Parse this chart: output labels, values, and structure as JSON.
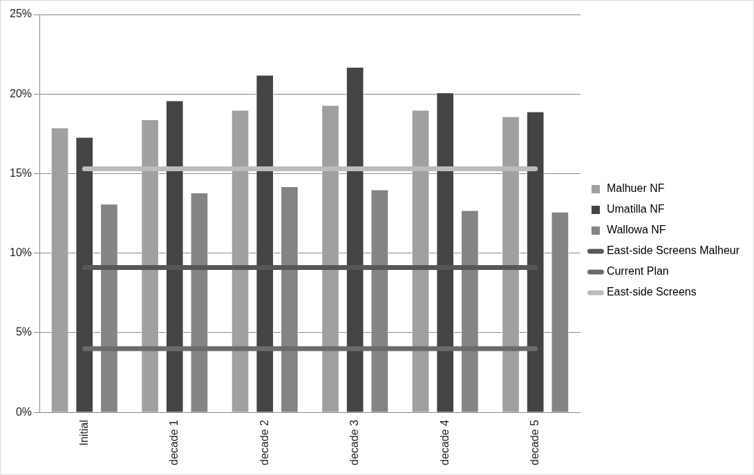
{
  "chart_data": {
    "type": "bar",
    "categories": [
      "Initial",
      "decade 1",
      "decade 2",
      "decade 3",
      "decade 4",
      "decade 5"
    ],
    "series": [
      {
        "name": "Malhuer NF",
        "color": "#a0a0a0",
        "values": [
          17.9,
          18.4,
          19.0,
          19.3,
          19.0,
          18.6
        ]
      },
      {
        "name": "Umatilla NF",
        "color": "#444444",
        "values": [
          17.3,
          19.6,
          21.2,
          21.7,
          20.1,
          18.9
        ]
      },
      {
        "name": "Wallowa NF",
        "color": "#848484",
        "values": [
          13.1,
          13.8,
          14.2,
          14.0,
          12.7,
          12.6
        ]
      },
      {
        "name": "East-side Screens Malheur",
        "type": "line",
        "color": "#575757",
        "values": [
          9.1,
          9.1,
          9.1,
          9.1,
          9.1,
          9.1
        ]
      },
      {
        "name": "Current Plan",
        "type": "line",
        "color": "#6b6b6b",
        "values": [
          4.0,
          4.0,
          4.0,
          4.0,
          4.0,
          4.0
        ]
      },
      {
        "name": "East-side Screens",
        "type": "line",
        "color": "#bcbcbc",
        "values": [
          15.3,
          15.3,
          15.3,
          15.3,
          15.3,
          15.3
        ]
      }
    ],
    "ylim": [
      0,
      25
    ],
    "yticks": [
      {
        "value": 0,
        "label": "0%"
      },
      {
        "value": 5,
        "label": "5%"
      },
      {
        "value": 10,
        "label": "10%"
      },
      {
        "value": 15,
        "label": "15%"
      },
      {
        "value": 20,
        "label": "20%"
      },
      {
        "value": 25,
        "label": "25%"
      }
    ],
    "grid": "y",
    "legend": "right",
    "marker": "none",
    "line_style": "solid"
  }
}
